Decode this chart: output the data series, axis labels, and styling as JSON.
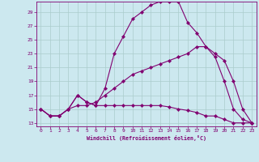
{
  "xlabel": "Windchill (Refroidissement éolien,°C)",
  "xlim": [
    -0.5,
    23.5
  ],
  "ylim": [
    12.5,
    30.5
  ],
  "yticks": [
    13,
    15,
    17,
    19,
    21,
    23,
    25,
    27,
    29
  ],
  "xticks": [
    0,
    1,
    2,
    3,
    4,
    5,
    6,
    7,
    8,
    9,
    10,
    11,
    12,
    13,
    14,
    15,
    16,
    17,
    18,
    19,
    20,
    21,
    22,
    23
  ],
  "bg_color": "#cce8ef",
  "grid_color": "#aacccc",
  "line_color": "#800070",
  "line1_y": [
    15,
    14,
    14,
    15,
    17,
    16,
    15.5,
    18,
    23,
    25.5,
    28,
    29,
    30,
    30.5,
    30.5,
    30.5,
    27.5,
    26,
    24,
    23,
    22,
    19,
    15,
    13
  ],
  "line2_y": [
    15,
    14,
    14,
    15,
    15.5,
    15.5,
    16,
    17,
    18,
    19,
    20,
    20.5,
    21,
    21.5,
    22,
    22.5,
    23,
    24,
    24,
    22.5,
    19,
    15,
    13.5,
    13
  ],
  "line3_y": [
    15,
    14,
    14,
    15,
    17,
    16,
    15.5,
    15.5,
    15.5,
    15.5,
    15.5,
    15.5,
    15.5,
    15.5,
    15.3,
    15,
    14.8,
    14.5,
    14,
    14,
    13.5,
    13,
    13,
    13
  ]
}
